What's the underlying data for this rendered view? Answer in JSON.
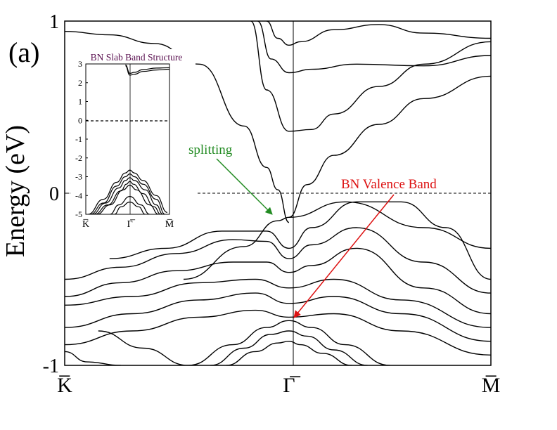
{
  "panel_label": "(a)",
  "colors": {
    "bands": "#000000",
    "splitting_annotation": "#228b22",
    "valence_annotation": "#dd1111",
    "inset_title": "#5a1050"
  },
  "chart_data": [
    {
      "type": "line",
      "title": "",
      "xlabel": "",
      "ylabel": "Energy (eV)",
      "ylim": [
        -1,
        1
      ],
      "y_ticks": [
        {
          "value": 1,
          "label": "1"
        },
        {
          "value": 0,
          "label": "0"
        },
        {
          "value": -1,
          "label": "-1"
        }
      ],
      "x_ticks": [
        {
          "value": 0,
          "label": "K̅"
        },
        {
          "value": 1,
          "label": "Γ̅"
        },
        {
          "value": 1.9,
          "label": "M̅"
        }
      ],
      "xlim": [
        0,
        1.9
      ],
      "reference_line": {
        "y": 0,
        "style": "dashed"
      },
      "vertical_line": {
        "x": 1
      },
      "annotations": [
        {
          "text": "splitting",
          "color": "#228b22",
          "target_x": 0.92,
          "target_y": -0.13
        },
        {
          "text": "BN Valence Band",
          "color": "#dd1111",
          "target_x": 1.0,
          "target_y": -0.72
        }
      ],
      "series": [
        {
          "x": [
            0,
            0.2,
            0.4,
            0.6,
            0.8,
            0.9,
            0.95,
            1.0
          ],
          "values": [
            0.94,
            0.92,
            0.87,
            0.75,
            0.39,
            0.15,
            0.02,
            -0.17
          ]
        },
        {
          "x": [
            0.53,
            0.8,
            0.95,
            1.0,
            1.25,
            1.6,
            1.9
          ],
          "values": [
            -0.5,
            -0.31,
            -0.16,
            -0.14,
            -0.05,
            -0.2,
            -0.32
          ]
        },
        {
          "x": [
            1.0,
            1.08,
            1.2,
            1.4,
            1.6,
            1.9
          ],
          "values": [
            -0.14,
            0.05,
            0.22,
            0.4,
            0.55,
            0.68
          ]
        },
        {
          "x": [
            0.83,
            0.9,
            1.0,
            1.1,
            1.2,
            1.4,
            1.6,
            1.9
          ],
          "values": [
            1.0,
            0.6,
            0.36,
            0.37,
            0.46,
            0.62,
            0.75,
            0.88
          ]
        },
        {
          "x": [
            0.86,
            0.92,
            1.0,
            1.1,
            1.3,
            1.6,
            1.9
          ],
          "values": [
            1.0,
            0.78,
            0.7,
            0.72,
            0.75,
            0.74,
            0.8
          ]
        },
        {
          "x": [
            0.9,
            0.95,
            1.0,
            1.05,
            1.2,
            1.4,
            1.6,
            1.9
          ],
          "values": [
            1.0,
            0.9,
            0.86,
            0.88,
            0.95,
            0.98,
            0.93,
            0.9
          ]
        },
        {
          "x": [
            0.2,
            0.45,
            0.7,
            0.9,
            1.0,
            1.1,
            1.3,
            1.5,
            1.7,
            1.9
          ],
          "values": [
            -0.38,
            -0.32,
            -0.22,
            -0.22,
            -0.32,
            -0.2,
            -0.05,
            -0.05,
            -0.2,
            -0.5
          ]
        },
        {
          "x": [
            0.0,
            0.25,
            0.5,
            0.75,
            0.9,
            1.0,
            1.1,
            1.3,
            1.6,
            1.9
          ],
          "values": [
            -0.5,
            -0.43,
            -0.35,
            -0.27,
            -0.28,
            -0.38,
            -0.3,
            -0.2,
            -0.4,
            -0.58
          ]
        },
        {
          "x": [
            0.0,
            0.25,
            0.5,
            0.75,
            0.9,
            1.0,
            1.1,
            1.3,
            1.6,
            1.9
          ],
          "values": [
            -0.6,
            -0.52,
            -0.45,
            -0.4,
            -0.4,
            -0.46,
            -0.42,
            -0.32,
            -0.55,
            -0.7
          ]
        },
        {
          "x": [
            0.0,
            0.3,
            0.6,
            0.85,
            1.0,
            1.2,
            1.5,
            1.9
          ],
          "values": [
            -0.65,
            -0.6,
            -0.52,
            -0.5,
            -0.55,
            -0.5,
            -0.62,
            -0.78
          ]
        },
        {
          "x": [
            0.0,
            0.3,
            0.6,
            0.85,
            1.0,
            1.2,
            1.5,
            1.9
          ],
          "values": [
            -0.78,
            -0.7,
            -0.62,
            -0.58,
            -0.64,
            -0.6,
            -0.7,
            -0.86
          ]
        },
        {
          "x": [
            0.0,
            0.3,
            0.6,
            0.85,
            1.0,
            1.2,
            1.5,
            1.9
          ],
          "values": [
            -0.88,
            -0.8,
            -0.72,
            -0.68,
            -0.72,
            -0.7,
            -0.8,
            -0.94
          ]
        },
        {
          "x": [
            0.55,
            0.75,
            0.9,
            1.0,
            1.1,
            1.25,
            1.45
          ],
          "values": [
            -1.0,
            -0.88,
            -0.78,
            -0.74,
            -0.78,
            -0.88,
            -1.0
          ]
        },
        {
          "x": [
            0.65,
            0.8,
            0.92,
            1.0,
            1.08,
            1.2,
            1.35
          ],
          "values": [
            -1.0,
            -0.9,
            -0.82,
            -0.8,
            -0.83,
            -0.91,
            -1.0
          ]
        },
        {
          "x": [
            0.72,
            0.85,
            0.95,
            1.0,
            1.05,
            1.15,
            1.28
          ],
          "values": [
            -1.0,
            -0.92,
            -0.87,
            -0.86,
            -0.88,
            -0.93,
            -1.0
          ]
        },
        {
          "x": [
            0.0,
            0.1,
            0.25
          ],
          "values": [
            -0.92,
            -0.98,
            -1.0
          ]
        },
        {
          "x": [
            0.15,
            0.35,
            0.55
          ],
          "values": [
            -0.8,
            -0.9,
            -1.0
          ]
        }
      ]
    },
    {
      "type": "line",
      "title": "BN Slab Band Structure",
      "xlabel": "",
      "ylabel": "",
      "ylim": [
        -5,
        3
      ],
      "y_ticks": [
        {
          "value": 3,
          "label": "3"
        },
        {
          "value": 2,
          "label": "2"
        },
        {
          "value": 1,
          "label": "1"
        },
        {
          "value": 0,
          "label": "0"
        },
        {
          "value": -1,
          "label": "-1"
        },
        {
          "value": -2,
          "label": "-2"
        },
        {
          "value": -3,
          "label": "-3"
        },
        {
          "value": -4,
          "label": "-4"
        },
        {
          "value": -5,
          "label": "-5"
        }
      ],
      "x_ticks": [
        {
          "value": 0,
          "label": "K̅"
        },
        {
          "value": 1,
          "label": "Γ̅"
        },
        {
          "value": 1.9,
          "label": "M̅"
        }
      ],
      "xlim": [
        0,
        1.9
      ],
      "reference_line": {
        "y": 0,
        "style": "dashed"
      },
      "vertical_line": {
        "x": 1
      },
      "series": [
        {
          "x": [
            0.05,
            0.4,
            0.7,
            0.9,
            1.0,
            1.1,
            1.3,
            1.6,
            1.85
          ],
          "values": [
            -5.0,
            -4.2,
            -3.3,
            -2.8,
            -2.65,
            -2.8,
            -3.2,
            -4.0,
            -4.9
          ]
        },
        {
          "x": [
            0.1,
            0.4,
            0.7,
            0.9,
            1.0,
            1.1,
            1.3,
            1.6,
            1.8
          ],
          "values": [
            -5.0,
            -4.4,
            -3.5,
            -3.0,
            -2.85,
            -3.0,
            -3.4,
            -4.2,
            -5.0
          ]
        },
        {
          "x": [
            0.15,
            0.45,
            0.75,
            0.9,
            1.0,
            1.1,
            1.35,
            1.6,
            1.75
          ],
          "values": [
            -5.0,
            -4.4,
            -3.6,
            -3.2,
            -3.05,
            -3.2,
            -3.7,
            -4.5,
            -5.0
          ]
        },
        {
          "x": [
            0.2,
            0.5,
            0.8,
            0.92,
            1.0,
            1.08,
            1.3,
            1.55,
            1.7
          ],
          "values": [
            -5.0,
            -4.5,
            -3.75,
            -3.4,
            -3.25,
            -3.4,
            -3.9,
            -4.6,
            -5.0
          ]
        },
        {
          "x": [
            0.25,
            0.55,
            0.85,
            1.0,
            1.15,
            1.45,
            1.65
          ],
          "values": [
            -5.0,
            -4.5,
            -3.7,
            -3.45,
            -3.7,
            -4.5,
            -5.0
          ]
        },
        {
          "x": [
            0.55,
            0.75,
            1.0,
            1.25,
            1.45
          ],
          "values": [
            -5.0,
            -4.5,
            -4.05,
            -4.5,
            -5.0
          ]
        },
        {
          "x": [
            0.65,
            0.8,
            1.0,
            1.2,
            1.35
          ],
          "values": [
            -5.0,
            -4.6,
            -4.35,
            -4.6,
            -5.0
          ]
        },
        {
          "x": [
            0.9,
            1.0,
            1.1,
            1.3,
            1.6,
            1.9
          ],
          "values": [
            2.95,
            2.5,
            2.55,
            2.7,
            2.78,
            2.8
          ]
        },
        {
          "x": [
            0.9,
            1.0,
            1.1,
            1.3,
            1.6,
            1.9
          ],
          "values": [
            2.9,
            2.4,
            2.45,
            2.6,
            2.68,
            2.72
          ]
        }
      ]
    }
  ],
  "annotations": {
    "splitting": "splitting",
    "valence": "BN Valence Band"
  }
}
